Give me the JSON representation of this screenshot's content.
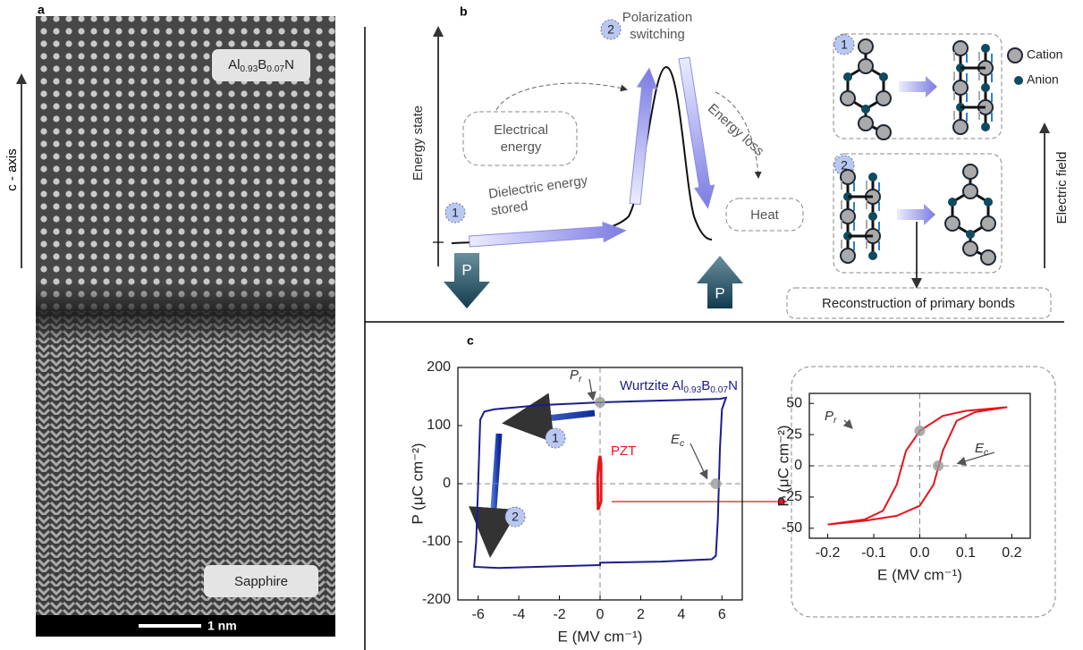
{
  "panel_a": {
    "label": "a",
    "top_material": "Al0.93B0.07N",
    "bottom_material": "Sapphire",
    "scale_bar": "1 nm",
    "axis_label": "c - axis"
  },
  "panel_b": {
    "label": "b",
    "y_axis_label": "Energy state",
    "switching": "Polarization switching",
    "electrical": "Electrical energy",
    "stored": "Dielectric energy stored",
    "loss": "Energy loss",
    "heat": "Heat",
    "polarization": "P",
    "legend": [
      "Cation",
      "Anion"
    ],
    "field": "Electric field",
    "reconstruction": "Reconstruction of primary bonds"
  },
  "panel_c": {
    "label": "c"
  },
  "steps": [
    "1",
    "2"
  ],
  "chart_data": [
    {
      "type": "line",
      "xlabel": "E (MV cm⁻¹)",
      "ylabel": "P (μC cm⁻²)",
      "xlim": [
        -7,
        7
      ],
      "ylim": [
        -200,
        200
      ],
      "xticks": [
        -6,
        -4,
        -2,
        0,
        2,
        4,
        6
      ],
      "yticks": [
        -200,
        -100,
        0,
        100,
        200
      ],
      "zero_lines": true,
      "series": [
        {
          "name": "Wurtzite Al0.93B0.07N",
          "color": "#1c1c8f",
          "x": [
            6.2,
            5.9,
            3,
            0,
            -3,
            -5.2,
            -5.7,
            -5.9,
            -6.0,
            -6.1,
            -6.2,
            -5,
            -2,
            0,
            0,
            3,
            5.5,
            5.7,
            5.8,
            5.9,
            6.0,
            6.2
          ],
          "values": [
            148,
            146,
            143,
            140,
            135,
            128,
            124,
            110,
            0,
            -100,
            -143,
            -145,
            -142,
            -140,
            -136,
            -134,
            -130,
            -124,
            -60,
            60,
            128,
            148
          ]
        },
        {
          "name": "PZT",
          "color": "#e8141b",
          "x": [
            -0.1,
            -0.12,
            -0.05,
            0.0,
            0.05,
            0.05,
            -0.1
          ],
          "values": [
            -45,
            10,
            40,
            48,
            35,
            -30,
            -45
          ]
        }
      ],
      "annotations": [
        {
          "text": "P",
          "sub": "r",
          "x": 0,
          "y": 140
        },
        {
          "text": "E",
          "sub": "c",
          "x": 5.7,
          "y": 0
        }
      ]
    },
    {
      "type": "line",
      "xlabel": "E (MV cm⁻¹)",
      "ylabel": "P (μC cm⁻²)",
      "xlim": [
        -0.24,
        0.24
      ],
      "ylim": [
        -58,
        58
      ],
      "xticks": [
        -0.2,
        -0.1,
        {
          "value": 0,
          "label": "0.0"
        },
        0.1,
        0.2
      ],
      "yticks": [
        -50,
        -25,
        0,
        25,
        50
      ],
      "zero_lines": true,
      "series": [
        {
          "color": "#e8141b",
          "x": [
            0.19,
            0.1,
            0.05,
            0.0,
            -0.03,
            -0.05,
            -0.08,
            -0.12,
            -0.2,
            -0.12,
            -0.05,
            0.0,
            0.03,
            0.05,
            0.08,
            0.12,
            0.19
          ],
          "values": [
            47,
            44,
            40,
            28,
            12,
            -15,
            -36,
            -43,
            -47,
            -44,
            -40,
            -32,
            -15,
            12,
            36,
            43,
            47
          ]
        }
      ],
      "annotations": [
        {
          "text": "P",
          "sub": "r",
          "x": 0,
          "y": 28
        },
        {
          "text": "E",
          "sub": "c",
          "x": 0.04,
          "y": 0
        }
      ]
    }
  ]
}
